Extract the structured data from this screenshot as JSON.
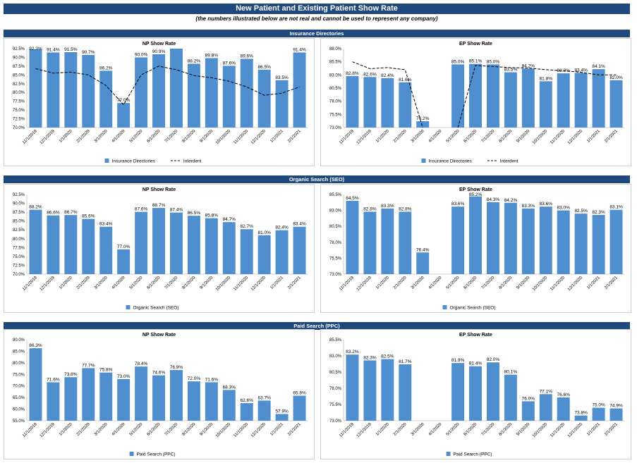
{
  "header": {
    "title": "New Patient and Existing Patient Show Rate",
    "subtitle": "(the numbers illustrated below are not real and cannot be used to represent any company)"
  },
  "sections": [
    {
      "label": "Insurance Directories"
    },
    {
      "label": "Organic Search (SEO)"
    },
    {
      "label": "Paid Search (PPC)"
    }
  ],
  "colors": {
    "bar": "#4f8fd0",
    "header": "#1f497d",
    "line": "#000000"
  },
  "chart_data": [
    {
      "id": "ins-np",
      "type": "bar",
      "title": "NP Show Rate",
      "categories": [
        "11/1/2019",
        "12/1/2019",
        "1/1/2020",
        "2/1/2020",
        "3/1/2020",
        "4/1/2020",
        "5/1/2020",
        "6/1/2020",
        "7/1/2020",
        "8/1/2020",
        "9/1/2020",
        "10/1/2020",
        "11/1/2020",
        "12/1/2020",
        "1/1/2021",
        "2/1/2021"
      ],
      "series": [
        {
          "name": "Insurance Directories",
          "kind": "bar",
          "values": [
            92.3,
            91.4,
            91.5,
            90.7,
            86.2,
            77.0,
            90.0,
            90.9,
            92.5,
            88.2,
            89.8,
            87.6,
            89.6,
            86.5,
            83.5,
            91.4
          ],
          "labels": [
            "92.3%",
            "91.4%",
            "91.5%",
            "90.7%",
            "86.2%",
            "77.0%",
            "90.0%",
            "90.9%",
            null,
            "88.2%",
            "89.8%",
            "87.6%",
            "89.6%",
            "86.5%",
            "83.5%",
            "91.4%"
          ]
        },
        {
          "name": "Interdent",
          "kind": "line",
          "values": [
            86.8,
            85.5,
            85.8,
            85.0,
            82.0,
            76.5,
            85.0,
            87.5,
            86.5,
            84.8,
            84.2,
            83.2,
            81.6,
            79.2,
            79.8,
            81.6
          ]
        }
      ],
      "ylim": [
        70,
        92.5
      ],
      "ticks": [
        70,
        72.5,
        75,
        77.5,
        80,
        82.5,
        85,
        87.5,
        90,
        92.5
      ],
      "grid": false,
      "legend": "bottom"
    },
    {
      "id": "ins-ep",
      "type": "bar",
      "title": "EP Show Rate",
      "categories": [
        "11/1/2019",
        "12/1/2019",
        "1/1/2020",
        "2/1/2020",
        "3/1/2020",
        "4/1/2020",
        "5/1/2020",
        "6/1/2020",
        "7/1/2020",
        "8/1/2020",
        "9/1/2020",
        "10/1/2020",
        "11/1/2020",
        "12/1/2020",
        "1/1/2021",
        "2/1/2021"
      ],
      "series": [
        {
          "name": "Insurance Directories",
          "kind": "bar",
          "values": [
            82.8,
            82.6,
            82.4,
            81.6,
            74.2,
            null,
            85.0,
            85.1,
            85.0,
            83.5,
            84.2,
            81.8,
            83.3,
            83.4,
            84.1,
            82.0
          ],
          "labels": [
            "82.8%",
            "82.6%",
            "82.4%",
            "81.6%",
            "74.2%",
            null,
            "85.0%",
            "85.1%",
            "85.0%",
            "83.5%",
            "84.2%",
            "81.8%",
            "83.3%",
            "83.4%",
            "84.1%",
            "82.0%"
          ]
        },
        {
          "name": "Interdent",
          "kind": "line",
          "values": [
            85.5,
            84.2,
            84.4,
            84.0,
            73.0,
            null,
            73.0,
            84.8,
            84.6,
            84.4,
            84.3,
            84.0,
            83.8,
            83.5,
            83.0,
            83.0
          ]
        }
      ],
      "ylim": [
        73,
        88
      ],
      "ticks": [
        73,
        75.5,
        78,
        80.5,
        83,
        85.5,
        88
      ],
      "grid": false,
      "legend": "bottom"
    },
    {
      "id": "seo-np",
      "type": "bar",
      "title": "NP Show Rate",
      "categories": [
        "11/1/2019",
        "12/1/2019",
        "1/1/2020",
        "2/1/2020",
        "3/1/2020",
        "4/1/2020",
        "5/1/2020",
        "6/1/2020",
        "7/1/2020",
        "8/1/2020",
        "9/1/2020",
        "10/1/2020",
        "11/1/2020",
        "12/1/2020",
        "1/1/2021",
        "2/1/2021"
      ],
      "series": [
        {
          "name": "Organic Search (SEO)",
          "kind": "bar",
          "values": [
            88.2,
            86.6,
            86.7,
            85.6,
            83.4,
            77.0,
            87.6,
            88.7,
            87.4,
            86.5,
            85.8,
            84.7,
            82.7,
            81.0,
            82.4,
            83.4
          ],
          "labels": [
            "88.2%",
            "86.6%",
            "86.7%",
            "85.6%",
            "83.4%",
            "77.0%",
            "87.6%",
            "88.7%",
            "87.4%",
            "86.5%",
            "85.8%",
            "84.7%",
            "82.7%",
            "81.0%",
            "82.4%",
            "83.4%"
          ]
        }
      ],
      "ylim": [
        70,
        92.5
      ],
      "ticks": [
        70,
        72.5,
        75,
        77.5,
        80,
        82.5,
        85,
        87.5,
        90,
        92.5
      ],
      "grid": false,
      "legend": "bottom"
    },
    {
      "id": "seo-ep",
      "type": "bar",
      "title": "EP Show Rate",
      "categories": [
        "11/1/2019",
        "12/1/2019",
        "1/1/2020",
        "2/1/2020",
        "3/1/2020",
        "4/1/2020",
        "5/1/2020",
        "6/1/2020",
        "7/1/2020",
        "8/1/2020",
        "9/1/2020",
        "10/1/2020",
        "11/1/2020",
        "12/1/2020",
        "1/1/2021",
        "2/1/2021"
      ],
      "series": [
        {
          "name": "Organic Search (SEO)",
          "kind": "bar",
          "values": [
            84.5,
            82.8,
            83.3,
            82.8,
            76.4,
            null,
            83.6,
            85.2,
            84.3,
            84.2,
            83.3,
            83.6,
            83.0,
            82.5,
            82.3,
            83.1
          ],
          "labels": [
            "84.5%",
            "82.8%",
            "83.3%",
            "82.8%",
            "76.4%",
            null,
            "83.6%",
            "85.2%",
            "84.3%",
            "84.2%",
            "83.3%",
            "83.6%",
            "83.0%",
            "82.5%",
            "82.3%",
            "83.1%"
          ]
        }
      ],
      "ylim": [
        73,
        85.5
      ],
      "ticks": [
        73,
        75.5,
        78,
        80.5,
        83,
        85.5
      ],
      "grid": false,
      "legend": "bottom"
    },
    {
      "id": "ppc-np",
      "type": "bar",
      "title": "NP Show Rate",
      "categories": [
        "11/1/2019",
        "12/1/2019",
        "1/1/2020",
        "2/1/2020",
        "3/1/2020",
        "4/1/2020",
        "5/1/2020",
        "6/1/2020",
        "7/1/2020",
        "8/1/2020",
        "9/1/2020",
        "10/1/2020",
        "11/1/2020",
        "12/1/2020",
        "1/1/2021",
        "2/1/2021"
      ],
      "series": [
        {
          "name": "Paid Search (PPC)",
          "kind": "bar",
          "values": [
            86.3,
            71.6,
            73.8,
            77.7,
            75.8,
            73.0,
            78.4,
            74.6,
            76.9,
            72.0,
            71.6,
            68.3,
            62.6,
            63.7,
            57.9,
            65.8
          ],
          "labels": [
            "86.3%",
            "71.6%",
            "73.8%",
            "77.7%",
            "75.8%",
            "73.0%",
            "78.4%",
            "74.6%",
            "76.9%",
            "72.0%",
            "71.6%",
            "68.3%",
            "62.6%",
            "63.7%",
            "57.9%",
            "65.8%"
          ]
        }
      ],
      "ylim": [
        55,
        90
      ],
      "ticks": [
        55,
        60,
        65,
        70,
        75,
        80,
        85,
        90
      ],
      "grid": false,
      "legend": "bottom"
    },
    {
      "id": "ppc-ep",
      "type": "bar",
      "title": "EP Show Rate",
      "categories": [
        "11/1/2019",
        "12/1/2019",
        "1/1/2020",
        "2/1/2020",
        "3/1/2020",
        "4/1/2020",
        "5/1/2020",
        "6/1/2020",
        "7/1/2020",
        "8/1/2020",
        "9/1/2020",
        "10/1/2020",
        "11/1/2020",
        "12/1/2020",
        "1/1/2021",
        "2/1/2021"
      ],
      "series": [
        {
          "name": "Paid Search (PPC)",
          "kind": "bar",
          "values": [
            83.2,
            82.3,
            82.5,
            81.7,
            null,
            null,
            81.9,
            81.4,
            82.0,
            80.1,
            76.0,
            77.1,
            76.6,
            73.8,
            75.0,
            74.9
          ],
          "labels": [
            "83.2%",
            "82.3%",
            "82.5%",
            "81.7%",
            null,
            null,
            "81.9%",
            "81.4%",
            "82.0%",
            "80.1%",
            "76.0%",
            "77.1%",
            "76.6%",
            "73.8%",
            "75.0%",
            "74.9%"
          ]
        }
      ],
      "ylim": [
        73,
        85.5
      ],
      "ticks": [
        73,
        75.5,
        78,
        80.5,
        83,
        85.5
      ],
      "grid": false,
      "legend": "bottom"
    }
  ]
}
